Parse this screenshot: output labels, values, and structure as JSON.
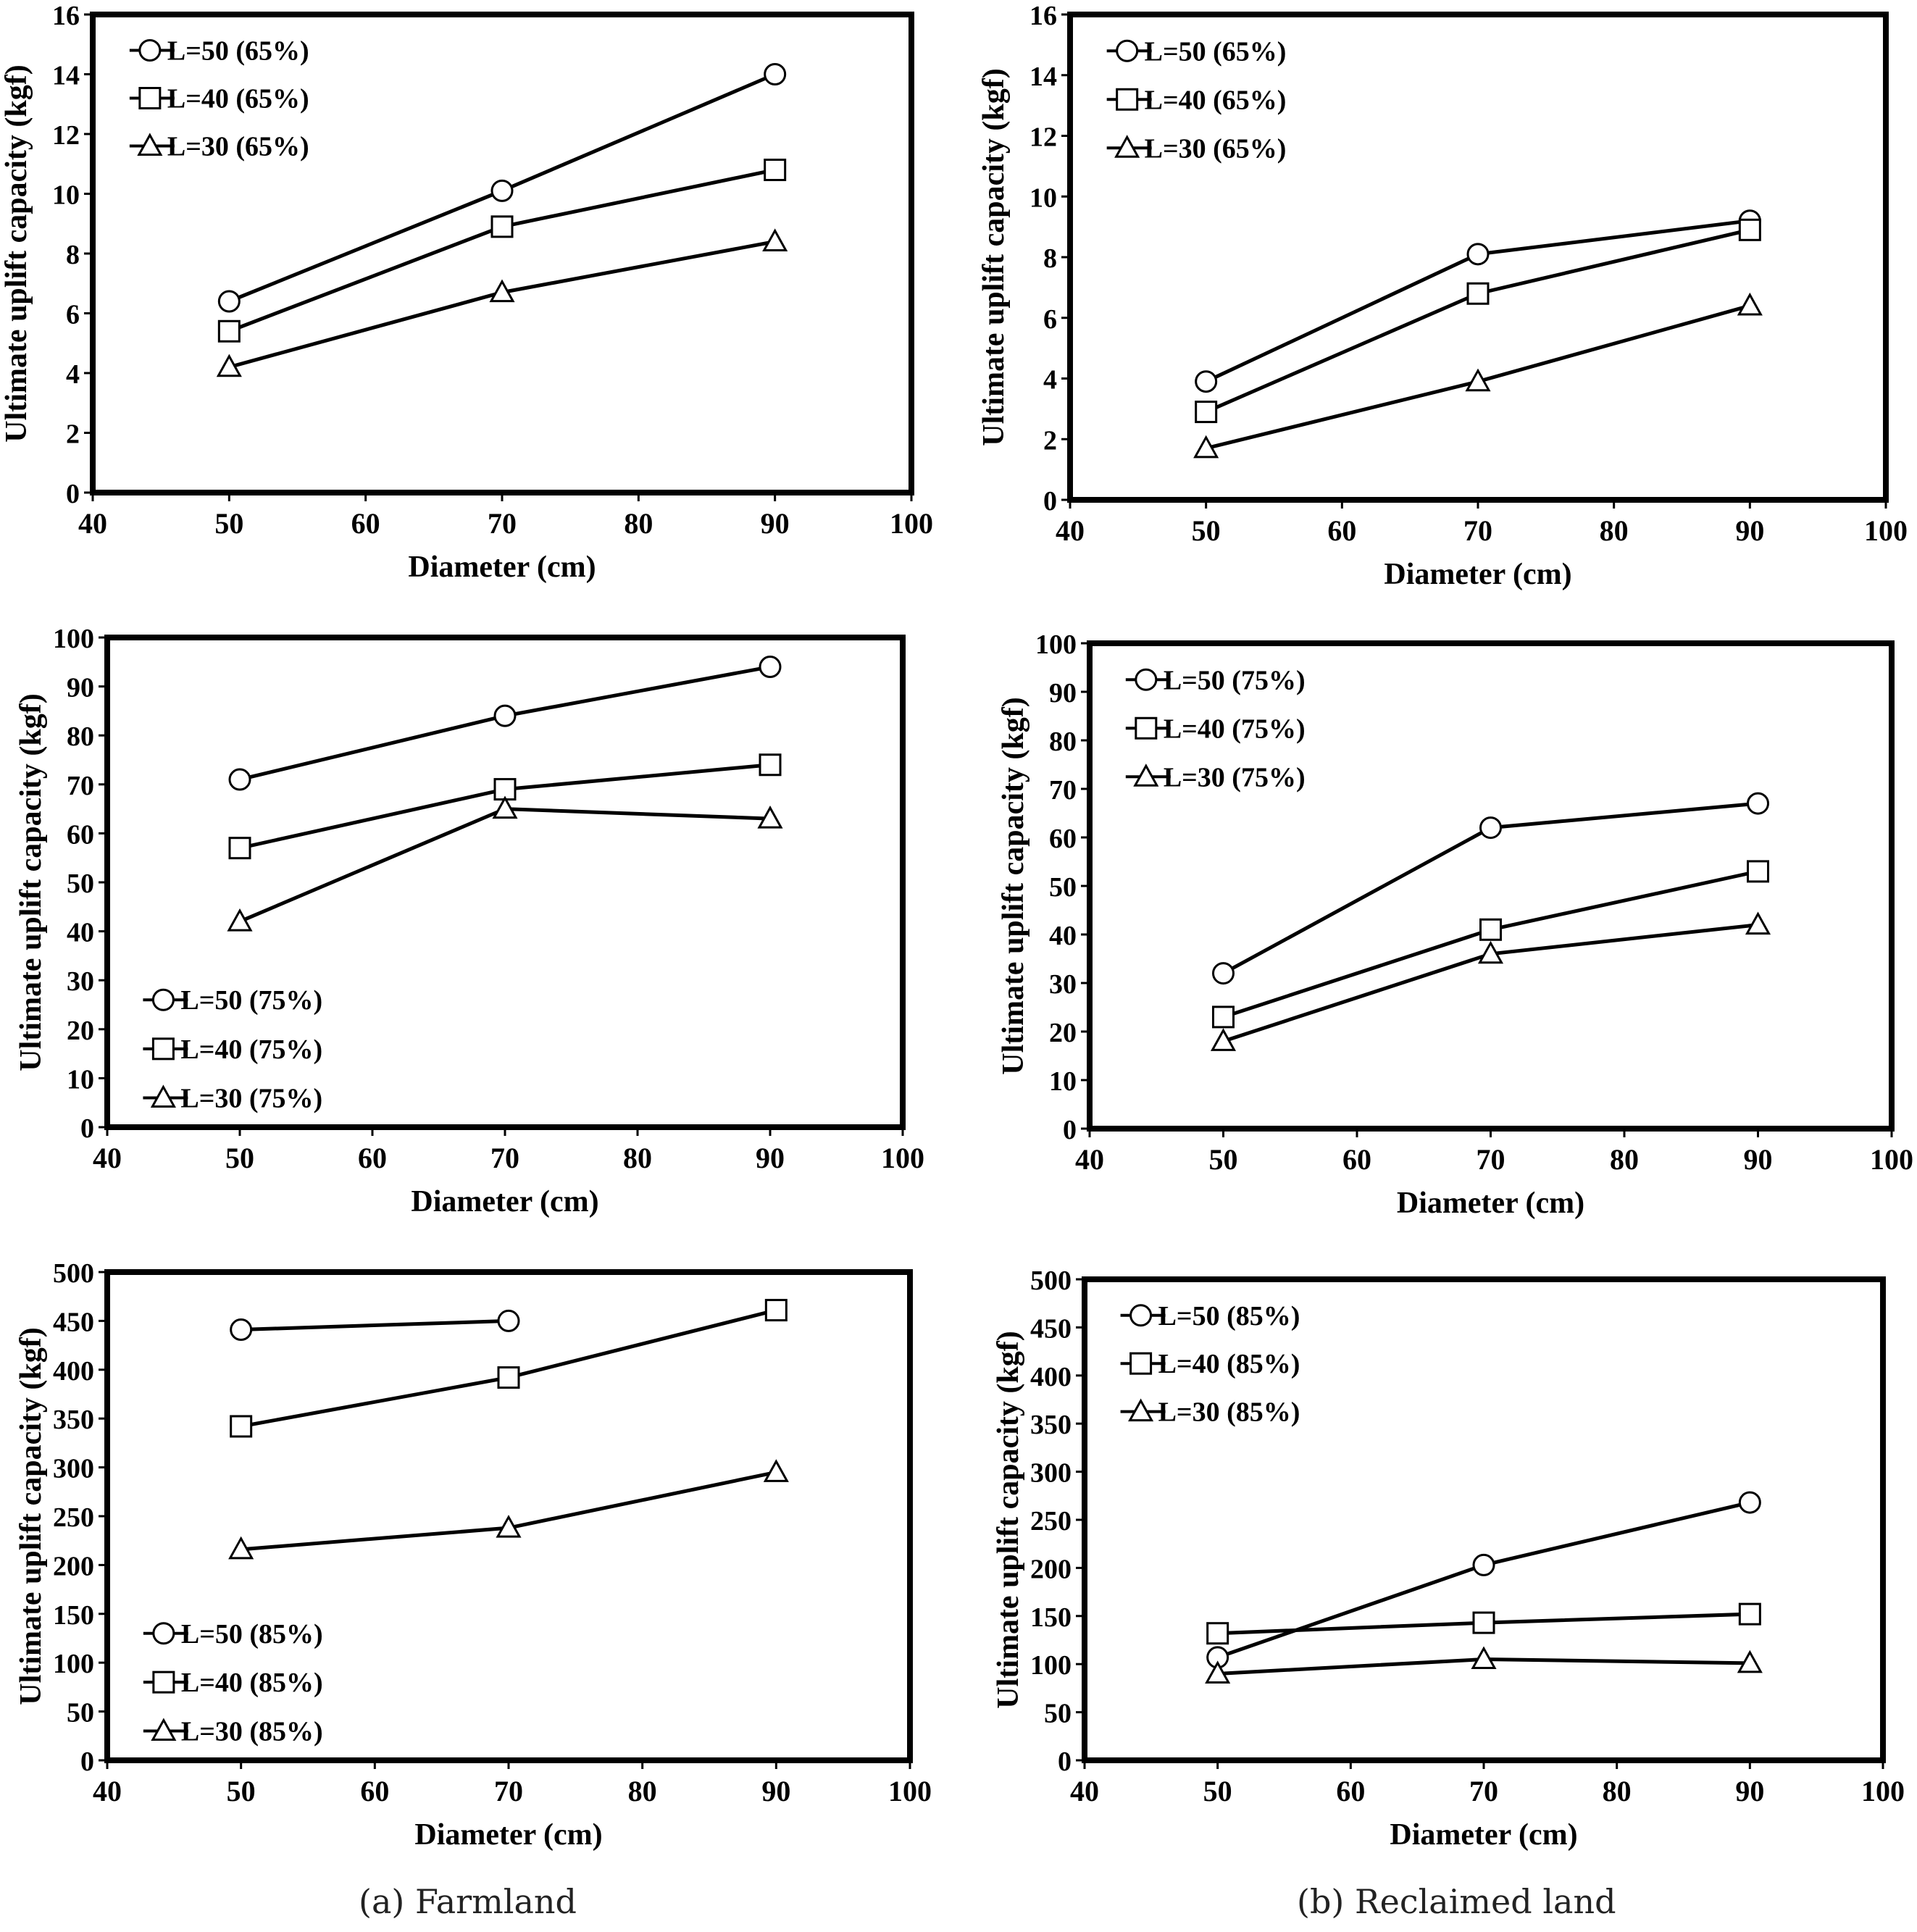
{
  "captions": {
    "farmland": "(a)  Farmland",
    "reclaimed": "(b)  Reclaimed  land"
  },
  "chart_data": [
    {
      "id": "farmland-65",
      "type": "line",
      "xlabel": "Diameter (cm)",
      "ylabel": "Ultimate uplift capacity (kgf)",
      "xlim": [
        40,
        100
      ],
      "xticks": [
        40,
        50,
        60,
        70,
        80,
        90,
        100
      ],
      "ylim": [
        0,
        16
      ],
      "yticks": [
        0,
        2,
        4,
        6,
        8,
        10,
        12,
        14,
        16
      ],
      "legend_position": "top-left",
      "series": [
        {
          "name": "L=50 (65%)",
          "marker": "circle",
          "x": [
            50,
            70,
            90
          ],
          "y": [
            6.4,
            10.1,
            14.0
          ]
        },
        {
          "name": "L=40 (65%)",
          "marker": "square",
          "x": [
            50,
            70,
            90
          ],
          "y": [
            5.4,
            8.9,
            10.8
          ]
        },
        {
          "name": "L=30 (65%)",
          "marker": "triangle",
          "x": [
            50,
            70,
            90
          ],
          "y": [
            4.2,
            6.7,
            8.4
          ]
        }
      ]
    },
    {
      "id": "reclaimed-65",
      "type": "line",
      "xlabel": "Diameter (cm)",
      "ylabel": "Ultimate uplift capacity (kgf)",
      "xlim": [
        40,
        100
      ],
      "xticks": [
        40,
        50,
        60,
        70,
        80,
        90,
        100
      ],
      "ylim": [
        0,
        16
      ],
      "yticks": [
        0,
        2,
        4,
        6,
        8,
        10,
        12,
        14,
        16
      ],
      "legend_position": "top-left",
      "series": [
        {
          "name": "L=50 (65%)",
          "marker": "circle",
          "x": [
            50,
            70,
            90
          ],
          "y": [
            3.9,
            8.1,
            9.2
          ]
        },
        {
          "name": "L=40 (65%)",
          "marker": "square",
          "x": [
            50,
            70,
            90
          ],
          "y": [
            2.9,
            6.8,
            8.9
          ]
        },
        {
          "name": "L=30 (65%)",
          "marker": "triangle",
          "x": [
            50,
            70,
            90
          ],
          "y": [
            1.7,
            3.9,
            6.4
          ]
        }
      ]
    },
    {
      "id": "farmland-75",
      "type": "line",
      "xlabel": "Diameter (cm)",
      "ylabel": "Ultimate uplift capacity (kgf)",
      "xlim": [
        40,
        100
      ],
      "xticks": [
        40,
        50,
        60,
        70,
        80,
        90,
        100
      ],
      "ylim": [
        0,
        100
      ],
      "yticks": [
        0,
        10,
        20,
        30,
        40,
        50,
        60,
        70,
        80,
        90,
        100
      ],
      "legend_position": "bottom-left",
      "series": [
        {
          "name": "L=50 (75%)",
          "marker": "circle",
          "x": [
            50,
            70,
            90
          ],
          "y": [
            71,
            84,
            94
          ]
        },
        {
          "name": "L=40 (75%)",
          "marker": "square",
          "x": [
            50,
            70,
            90
          ],
          "y": [
            57,
            69,
            74
          ]
        },
        {
          "name": "L=30 (75%)",
          "marker": "triangle",
          "x": [
            50,
            70,
            90
          ],
          "y": [
            42,
            65,
            63
          ]
        }
      ]
    },
    {
      "id": "reclaimed-75",
      "type": "line",
      "xlabel": "Diameter (cm)",
      "ylabel": "Ultimate uplift capacity (kgf)",
      "xlim": [
        40,
        100
      ],
      "xticks": [
        40,
        50,
        60,
        70,
        80,
        90,
        100
      ],
      "ylim": [
        0,
        100
      ],
      "yticks": [
        0,
        10,
        20,
        30,
        40,
        50,
        60,
        70,
        80,
        90,
        100
      ],
      "legend_position": "top-left",
      "series": [
        {
          "name": "L=50 (75%)",
          "marker": "circle",
          "x": [
            50,
            70,
            90
          ],
          "y": [
            32,
            62,
            67
          ]
        },
        {
          "name": "L=40 (75%)",
          "marker": "square",
          "x": [
            50,
            70,
            90
          ],
          "y": [
            23,
            41,
            53
          ]
        },
        {
          "name": "L=30 (75%)",
          "marker": "triangle",
          "x": [
            50,
            70,
            90
          ],
          "y": [
            18,
            36,
            42
          ]
        }
      ]
    },
    {
      "id": "farmland-85",
      "type": "line",
      "xlabel": "Diameter (cm)",
      "ylabel": "Ultimate uplift capacity (kgf)",
      "xlim": [
        40,
        100
      ],
      "xticks": [
        40,
        50,
        60,
        70,
        80,
        90,
        100
      ],
      "ylim": [
        0,
        500
      ],
      "yticks": [
        0,
        50,
        100,
        150,
        200,
        250,
        300,
        350,
        400,
        450,
        500
      ],
      "legend_position": "bottom-left",
      "series": [
        {
          "name": "L=50 (85%)",
          "marker": "circle",
          "x": [
            50,
            70
          ],
          "y": [
            441,
            450
          ]
        },
        {
          "name": "L=40 (85%)",
          "marker": "square",
          "x": [
            50,
            70,
            90
          ],
          "y": [
            342,
            392,
            461
          ]
        },
        {
          "name": "L=30 (85%)",
          "marker": "triangle",
          "x": [
            50,
            70,
            90
          ],
          "y": [
            216,
            238,
            295
          ]
        }
      ]
    },
    {
      "id": "reclaimed-85",
      "type": "line",
      "xlabel": "Diameter (cm)",
      "ylabel": "Ultimate uplift capacity (kgf)",
      "xlim": [
        40,
        100
      ],
      "xticks": [
        40,
        50,
        60,
        70,
        80,
        90,
        100
      ],
      "ylim": [
        0,
        500
      ],
      "yticks": [
        0,
        50,
        100,
        150,
        200,
        250,
        300,
        350,
        400,
        450,
        500
      ],
      "legend_position": "top-left",
      "series": [
        {
          "name": "L=50 (85%)",
          "marker": "circle",
          "x": [
            50,
            70,
            90
          ],
          "y": [
            107,
            203,
            268
          ]
        },
        {
          "name": "L=40 (85%)",
          "marker": "square",
          "x": [
            50,
            70,
            90
          ],
          "y": [
            132,
            143,
            152
          ]
        },
        {
          "name": "L=30 (85%)",
          "marker": "triangle",
          "x": [
            50,
            70,
            90
          ],
          "y": [
            90,
            105,
            101
          ]
        }
      ]
    }
  ]
}
